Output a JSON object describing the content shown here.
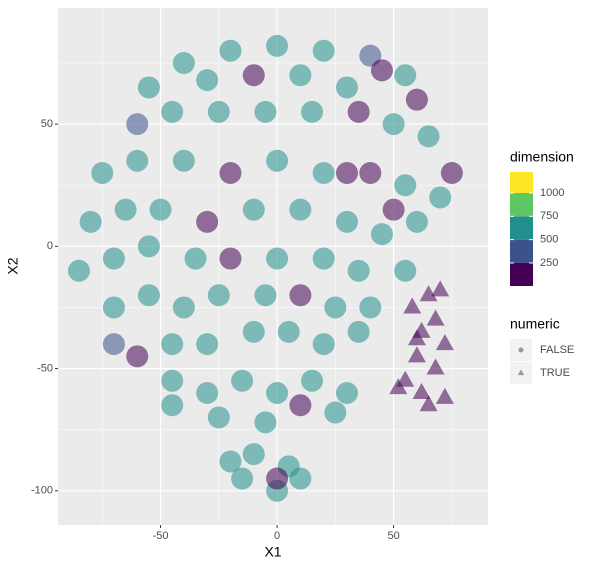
{
  "chart_data": {
    "type": "scatter",
    "x_label": "X1",
    "y_label": "X2",
    "xlim": [
      -94,
      90.5
    ],
    "ylim": [
      -114,
      97.5
    ],
    "xticks": [
      -50,
      0,
      50
    ],
    "yticks": [
      -100,
      -50,
      0,
      50
    ],
    "grid": true,
    "x": [
      -40,
      -20,
      0,
      20,
      40,
      45,
      55,
      60,
      -55,
      -30,
      -10,
      10,
      30,
      -60,
      -45,
      -25,
      -5,
      15,
      35,
      50,
      65,
      75,
      70,
      -75,
      -60,
      -40,
      -20,
      0,
      20,
      40,
      30,
      55,
      50,
      60,
      -80,
      -65,
      -50,
      -30,
      -10,
      10,
      30,
      45,
      -85,
      -70,
      -55,
      -35,
      -20,
      0,
      20,
      35,
      55,
      -70,
      -55,
      -40,
      -25,
      -5,
      10,
      25,
      40,
      -70,
      -60,
      -45,
      -30,
      -10,
      5,
      20,
      35,
      -45,
      -30,
      -15,
      0,
      15,
      30,
      10,
      -25,
      -5,
      25,
      -45,
      -10,
      5,
      -15,
      0,
      10,
      -20,
      0,
      58,
      65,
      70,
      62,
      72,
      60,
      68,
      55,
      62,
      52,
      72,
      65,
      60,
      68
    ],
    "y": [
      75,
      80,
      82,
      80,
      78,
      72,
      70,
      60,
      65,
      68,
      70,
      70,
      65,
      50,
      55,
      55,
      55,
      55,
      55,
      50,
      45,
      30,
      20,
      30,
      35,
      35,
      30,
      35,
      30,
      30,
      30,
      25,
      15,
      10,
      10,
      15,
      15,
      10,
      15,
      15,
      10,
      5,
      -10,
      -5,
      0,
      -5,
      -5,
      -5,
      -5,
      -10,
      -10,
      -25,
      -20,
      -25,
      -20,
      -20,
      -20,
      -25,
      -25,
      -40,
      -45,
      -40,
      -40,
      -35,
      -35,
      -40,
      -35,
      -55,
      -60,
      -55,
      -60,
      -55,
      -60,
      -65,
      -70,
      -72,
      -68,
      -65,
      -85,
      -90,
      -95,
      -100,
      -95,
      -88,
      -95,
      -25,
      -20,
      -18,
      -35,
      -40,
      -45,
      -50,
      -55,
      -60,
      -58,
      -62,
      -65,
      -38,
      -30
    ],
    "dimension": [
      600,
      500,
      600,
      550,
      400,
      100,
      500,
      100,
      600,
      500,
      100,
      600,
      500,
      450,
      600,
      600,
      550,
      600,
      100,
      600,
      550,
      100,
      550,
      600,
      500,
      600,
      100,
      600,
      550,
      100,
      100,
      500,
      100,
      600,
      600,
      550,
      600,
      100,
      650,
      600,
      550,
      600,
      600,
      500,
      600,
      600,
      100,
      550,
      600,
      500,
      600,
      500,
      600,
      550,
      600,
      600,
      100,
      600,
      550,
      450,
      100,
      600,
      600,
      600,
      500,
      600,
      550,
      600,
      600,
      650,
      600,
      600,
      600,
      100,
      600,
      550,
      600,
      500,
      600,
      600,
      500,
      600,
      550,
      600,
      100,
      100,
      100,
      100,
      100,
      100,
      100,
      100,
      100,
      100,
      100,
      100,
      100,
      100,
      100
    ],
    "numeric": [
      false,
      false,
      false,
      false,
      false,
      false,
      false,
      false,
      false,
      false,
      false,
      false,
      false,
      false,
      false,
      false,
      false,
      false,
      false,
      false,
      false,
      false,
      false,
      false,
      false,
      false,
      false,
      false,
      false,
      false,
      false,
      false,
      false,
      false,
      false,
      false,
      false,
      false,
      false,
      false,
      false,
      false,
      false,
      false,
      false,
      false,
      false,
      false,
      false,
      false,
      false,
      false,
      false,
      false,
      false,
      false,
      false,
      false,
      false,
      false,
      false,
      false,
      false,
      false,
      false,
      false,
      false,
      false,
      false,
      false,
      false,
      false,
      false,
      false,
      false,
      false,
      false,
      false,
      false,
      false,
      false,
      false,
      false,
      false,
      false,
      true,
      true,
      true,
      true,
      true,
      true,
      true,
      true,
      true,
      true,
      true,
      true,
      true,
      true
    ],
    "color_legend": {
      "title": "dimension",
      "ticks": [
        250,
        500,
        750,
        1000
      ],
      "lim": [
        3,
        1225
      ],
      "colors": [
        "#440154",
        "#3b528b",
        "#21908c",
        "#5dc863",
        "#fde725"
      ]
    },
    "shape_legend": {
      "title": "numeric",
      "labels": [
        "FALSE",
        "TRUE"
      ],
      "color": "#999999"
    }
  }
}
